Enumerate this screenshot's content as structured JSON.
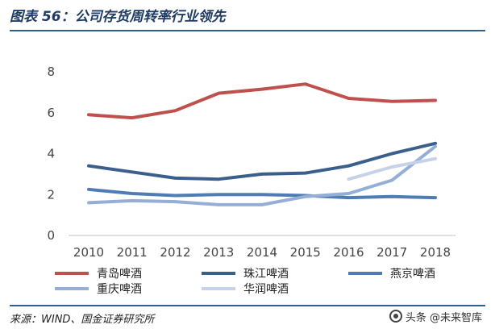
{
  "figure": {
    "title": "图表 56：公司存货周转率行业领先",
    "source": "来源：WIND、国金证券研究所",
    "watermark": "头条 @未来智库"
  },
  "chart_data": {
    "type": "line",
    "title": "",
    "xlabel": "",
    "ylabel": "",
    "x": [
      "2010",
      "2011",
      "2012",
      "2013",
      "2014",
      "2015",
      "2016",
      "2017",
      "2018"
    ],
    "ylim": [
      0,
      8
    ],
    "yticks": [
      0,
      2,
      4,
      6,
      8
    ],
    "grid": false,
    "legend_position": "bottom",
    "series": [
      {
        "name": "青岛啤酒",
        "color": "#c0504d",
        "values": [
          5.9,
          5.75,
          6.1,
          6.95,
          7.15,
          7.4,
          6.7,
          6.55,
          6.6
        ]
      },
      {
        "name": "珠江啤酒",
        "color": "#3a5f8c",
        "values": [
          3.4,
          3.1,
          2.8,
          2.75,
          3.0,
          3.05,
          3.4,
          4.0,
          4.5
        ]
      },
      {
        "name": "燕京啤酒",
        "color": "#4f7db3",
        "values": [
          2.25,
          2.05,
          1.95,
          2.0,
          2.0,
          1.95,
          1.85,
          1.9,
          1.85
        ]
      },
      {
        "name": "重庆啤酒",
        "color": "#94aed6",
        "values": [
          1.6,
          1.7,
          1.65,
          1.5,
          1.5,
          1.9,
          2.05,
          2.7,
          4.35
        ]
      },
      {
        "name": "华润啤酒",
        "color": "#c5d2ea",
        "values": [
          null,
          null,
          null,
          null,
          null,
          null,
          2.75,
          3.35,
          3.75
        ]
      }
    ]
  }
}
